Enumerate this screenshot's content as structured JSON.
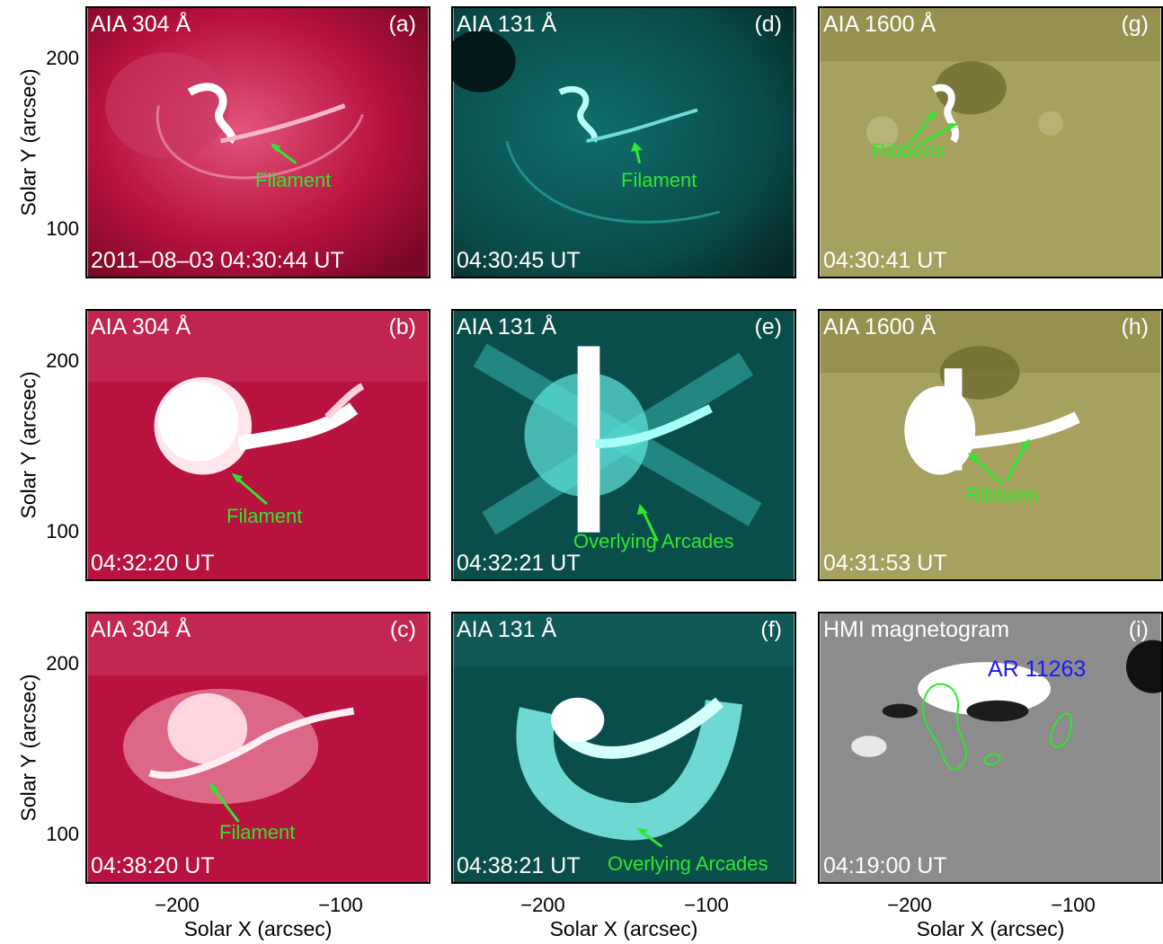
{
  "axes": {
    "ylabel": "Solar Y (arcsec)",
    "xlabel": "Solar X (arcsec)",
    "yticks": [
      "200",
      "100"
    ],
    "xticks": [
      "−200",
      "−100"
    ]
  },
  "panels": [
    {
      "id": "a",
      "wavelength": "AIA 304 Å",
      "tag": "(a)",
      "time": "2011–08–03 04:30:44 UT",
      "annotation": "Filament",
      "channel": "304"
    },
    {
      "id": "b",
      "wavelength": "AIA 304 Å",
      "tag": "(b)",
      "time": "04:32:20 UT",
      "annotation": "Filament",
      "channel": "304"
    },
    {
      "id": "c",
      "wavelength": "AIA 304 Å",
      "tag": "(c)",
      "time": "04:38:20 UT",
      "annotation": "Filament",
      "channel": "304"
    },
    {
      "id": "d",
      "wavelength": "AIA 131 Å",
      "tag": "(d)",
      "time": "04:30:45 UT",
      "annotation": "Filament",
      "channel": "131"
    },
    {
      "id": "e",
      "wavelength": "AIA 131 Å",
      "tag": "(e)",
      "time": "04:32:21 UT",
      "annotation": "Overlying Arcades",
      "channel": "131"
    },
    {
      "id": "f",
      "wavelength": "AIA 131 Å",
      "tag": "(f)",
      "time": "04:38:21 UT",
      "annotation": "Overlying Arcades",
      "channel": "131"
    },
    {
      "id": "g",
      "wavelength": "AIA 1600 Å",
      "tag": "(g)",
      "time": "04:30:41 UT",
      "annotation": "Ribbons",
      "channel": "1600"
    },
    {
      "id": "h",
      "wavelength": "AIA 1600 Å",
      "tag": "(h)",
      "time": "04:31:53 UT",
      "annotation": "Ribbons",
      "channel": "1600"
    },
    {
      "id": "i",
      "wavelength": "HMI magnetogram",
      "tag": "(i)",
      "time": "04:19:00 UT",
      "annotation": "AR 11263",
      "channel": "hmi"
    }
  ],
  "colors": {
    "aia304": "#b8123e",
    "aia131": "#0f6f6c",
    "aia1600": "#a6a15e",
    "hmi": "#8c8c8c",
    "annotation": "#2ee82e",
    "ar_label": "#1a1aff"
  }
}
